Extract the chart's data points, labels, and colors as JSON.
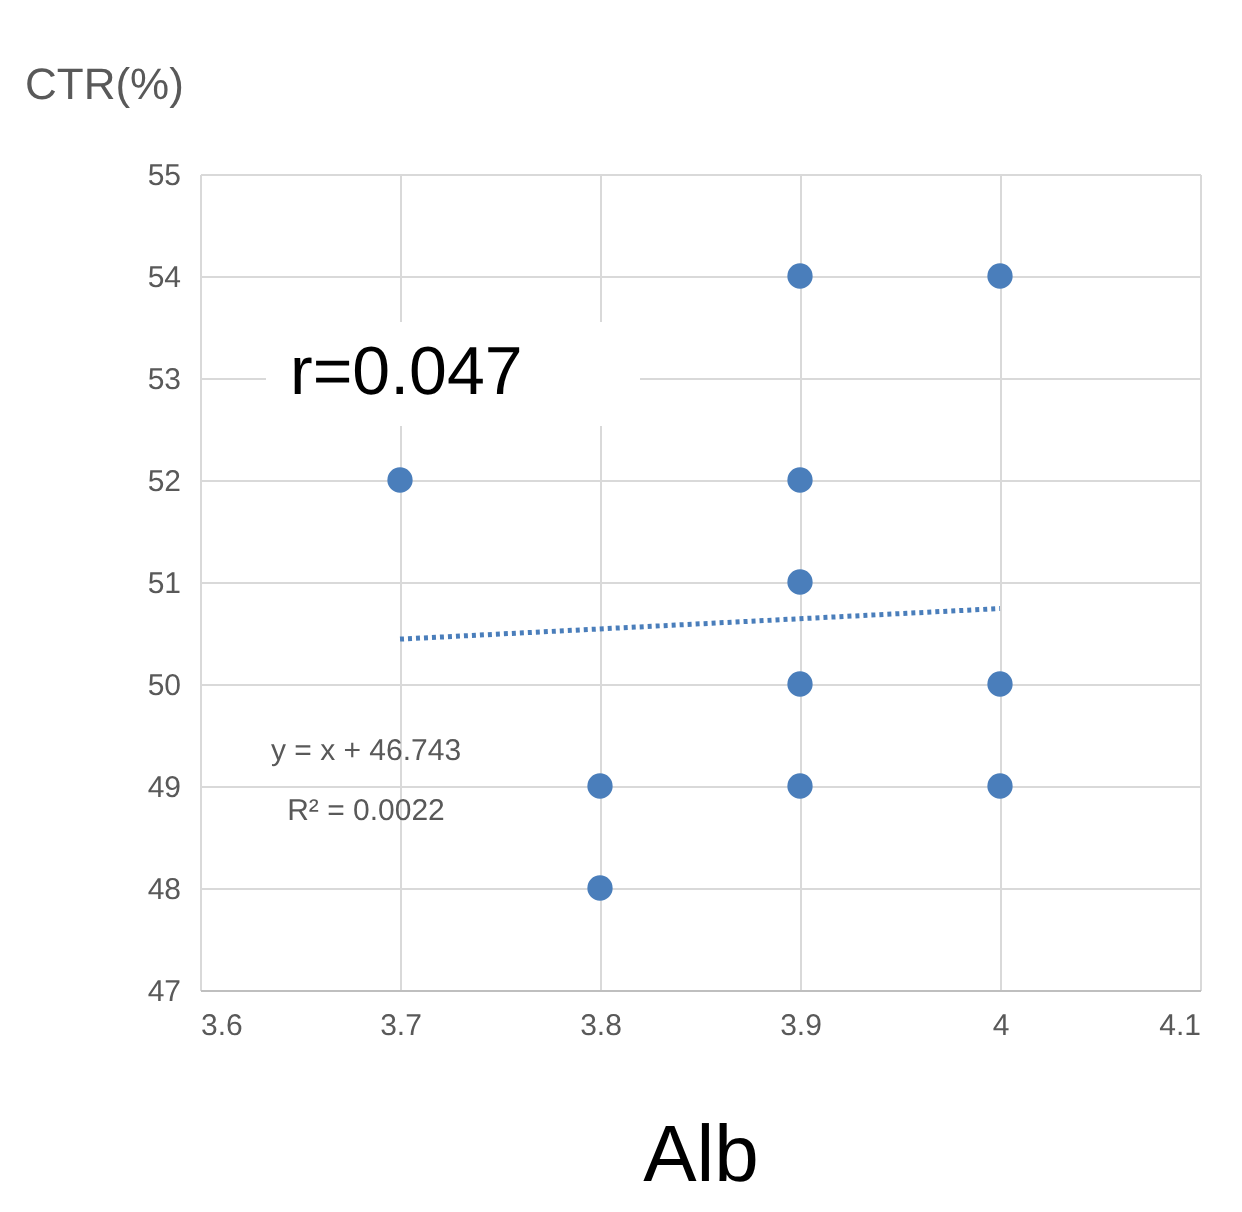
{
  "chart_data": {
    "type": "scatter",
    "xlabel": "Alb",
    "ylabel": "CTR(%)",
    "xlim": [
      3.6,
      4.1
    ],
    "xticks": [
      3.6,
      3.7,
      3.8,
      3.9,
      4,
      4.1
    ],
    "ylim": [
      47,
      55
    ],
    "yticks": [
      47,
      48,
      49,
      50,
      51,
      52,
      53,
      54,
      55
    ],
    "grid": true,
    "series": [
      {
        "marker": "circle",
        "color": "#4a7ebb",
        "x": [
          3.7,
          3.8,
          3.8,
          3.9,
          3.9,
          3.9,
          3.9,
          3.9,
          4,
          4,
          4
        ],
        "values": [
          52,
          49,
          48,
          54,
          52,
          51,
          50,
          49,
          54,
          50,
          49
        ]
      },
      {
        "type": "line",
        "color": "#4a7ebb",
        "line_style": "dotted",
        "x": [
          3.7,
          4
        ],
        "values": [
          50.44,
          50.74
        ]
      }
    ],
    "annotations": [
      "r=0.047",
      "y = x + 46.743",
      "R² = 0.0022"
    ]
  }
}
